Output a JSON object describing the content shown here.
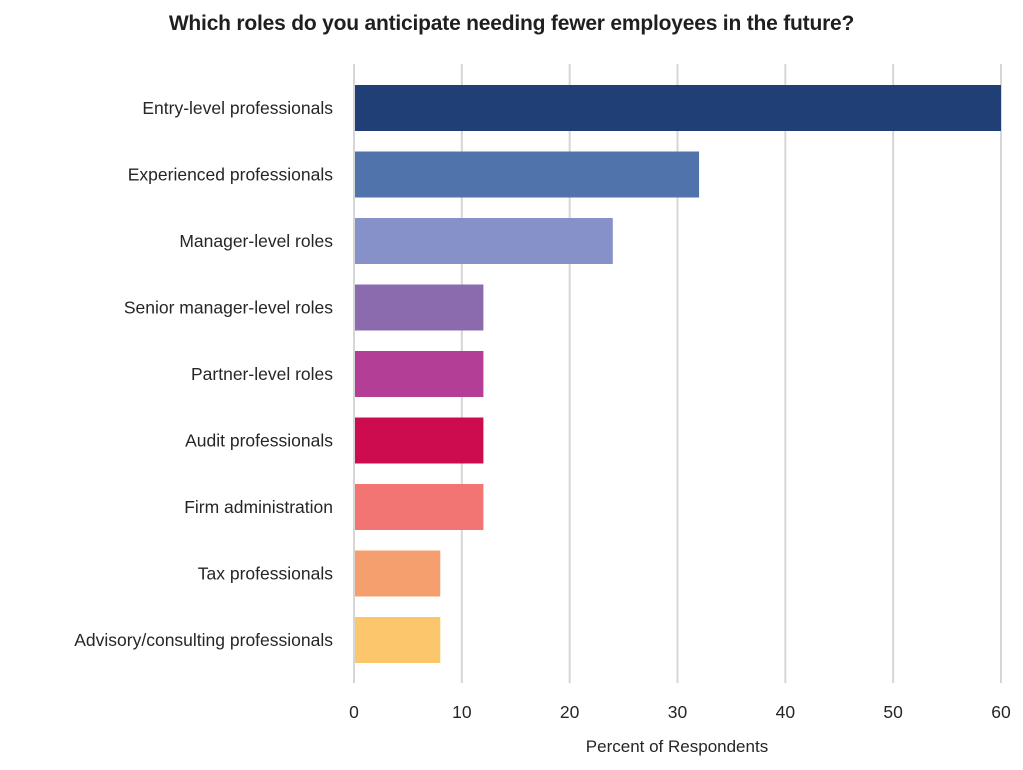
{
  "chart_data": {
    "type": "bar",
    "orientation": "horizontal",
    "title": "Which roles do you anticipate needing fewer employees in the future?",
    "xlabel": "Percent of Respondents",
    "ylabel": "",
    "xlim": [
      0,
      60
    ],
    "x_ticks": [
      0,
      10,
      20,
      30,
      40,
      50,
      60
    ],
    "grid": true,
    "categories": [
      "Entry-level professionals",
      "Experienced professionals",
      "Manager-level roles",
      "Senior manager-level roles",
      "Partner-level roles",
      "Audit professionals",
      "Firm administration",
      "Tax professionals",
      "Advisory/consulting professionals"
    ],
    "values": [
      60,
      32,
      24,
      12,
      12,
      12,
      12,
      8,
      8
    ],
    "colors": [
      "#203f77",
      "#5173ab",
      "#8591c8",
      "#8b6bae",
      "#b33e95",
      "#cd0b4f",
      "#f27574",
      "#f59f6f",
      "#fbc66c"
    ]
  }
}
